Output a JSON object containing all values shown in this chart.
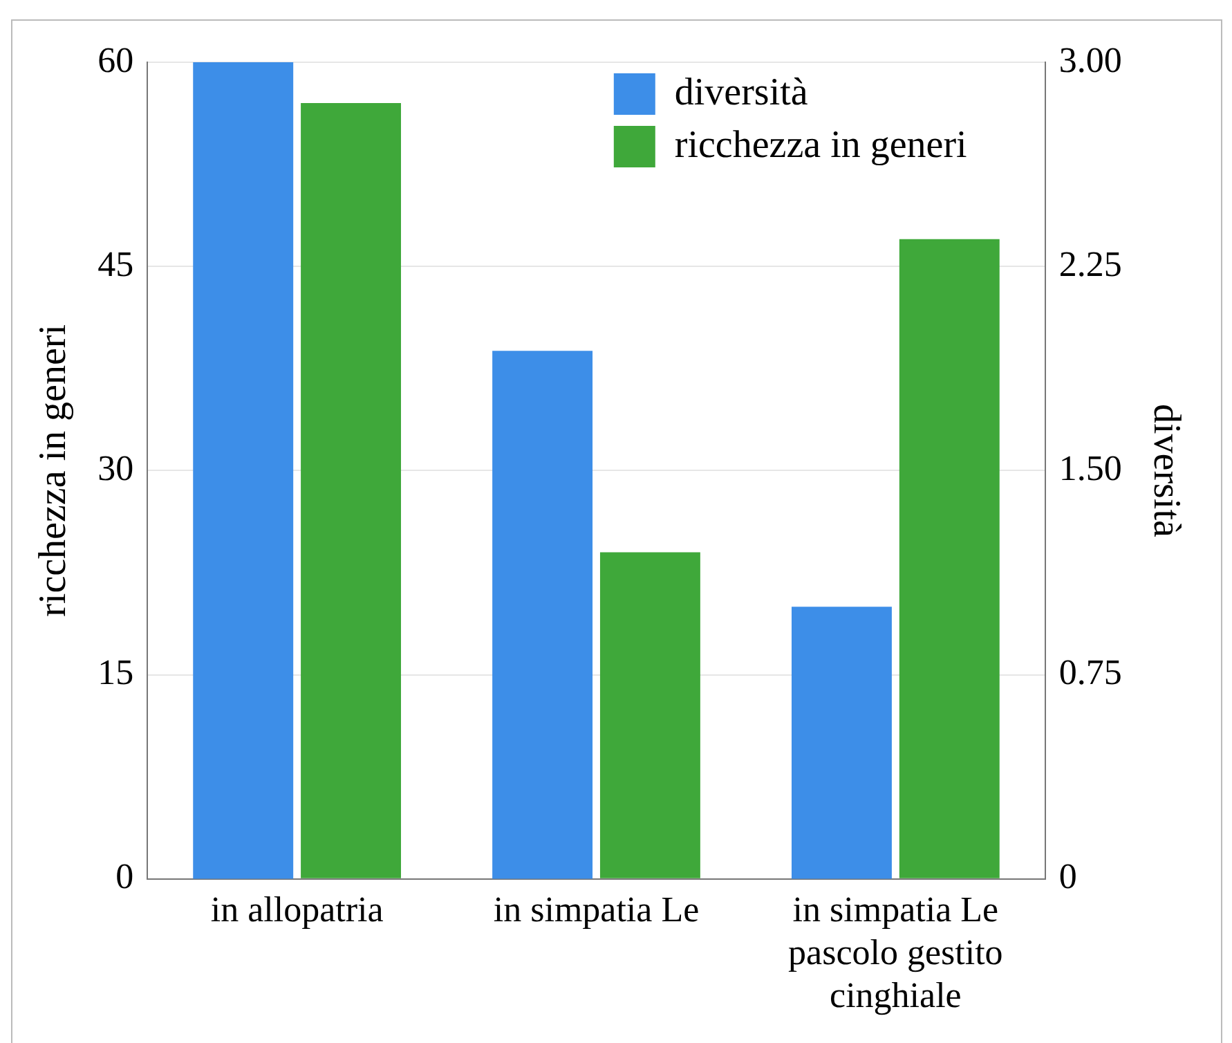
{
  "chart_data": {
    "type": "bar",
    "categories": [
      "in allopatria",
      "in simpatia Le",
      "in simpatia Le pascolo gestito cinghiale"
    ],
    "series": [
      {
        "name": "diversità",
        "color": "#3d8ee8",
        "values": [
          3.0,
          1.94,
          1.0
        ],
        "axis": "y2"
      },
      {
        "name": "ricchezza in generi",
        "color": "#3fa83a",
        "values": [
          57,
          24,
          47
        ],
        "axis": "y"
      }
    ],
    "ylabel": "ricchezza in generi",
    "y2label": "diversità",
    "ylim": [
      0,
      60
    ],
    "yticks": [
      0,
      15,
      30,
      45,
      60
    ],
    "y2lim": [
      0,
      3
    ],
    "y2ticks": [
      0,
      {
        "value": 0.75,
        "label": "0.75"
      },
      {
        "value": 1.5,
        "label": "1.50"
      },
      {
        "value": 2.25,
        "label": "2.25"
      },
      {
        "value": 3,
        "label": "3.00"
      }
    ],
    "grid": "y",
    "legend": "top right"
  }
}
